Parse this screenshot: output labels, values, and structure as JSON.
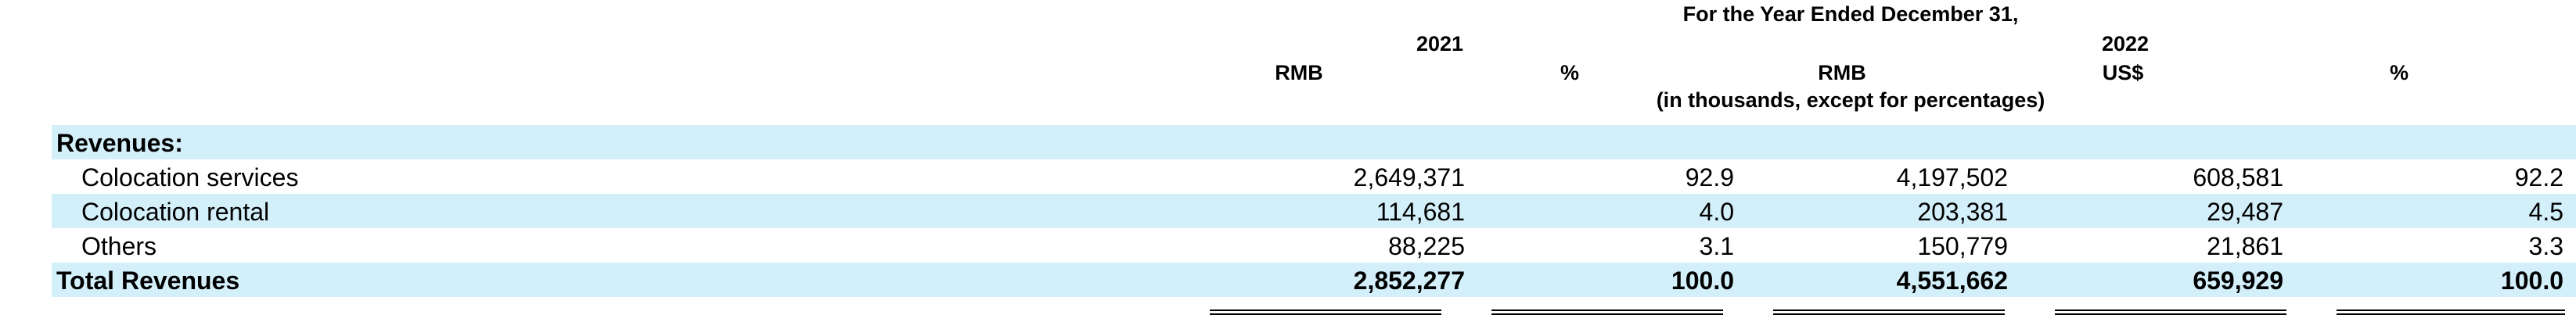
{
  "header": {
    "period": "For the Year Ended December 31,",
    "year_2021": "2021",
    "year_2022": "2022",
    "col_rmb_2021": "RMB",
    "col_pct_2021": "%",
    "col_rmb_2022": "RMB",
    "col_usd_2022": "US$",
    "col_pct_2022": "%",
    "units_note": "(in thousands, except for percentages)"
  },
  "rows": [
    {
      "label": "Revenues:",
      "values": [
        "",
        "",
        "",
        "",
        ""
      ]
    },
    {
      "label": "Colocation services",
      "values": [
        "2,649,371",
        "92.9",
        "4,197,502",
        "608,581",
        "92.2"
      ]
    },
    {
      "label": "Colocation rental",
      "values": [
        "114,681",
        "4.0",
        "203,381",
        "29,487",
        "4.5"
      ]
    },
    {
      "label": "Others",
      "values": [
        "88,225",
        "3.1",
        "150,779",
        "21,861",
        "3.3"
      ]
    },
    {
      "label": "Total Revenues",
      "values": [
        "2,852,277",
        "100.0",
        "4,551,662",
        "659,929",
        "100.0"
      ]
    }
  ]
}
